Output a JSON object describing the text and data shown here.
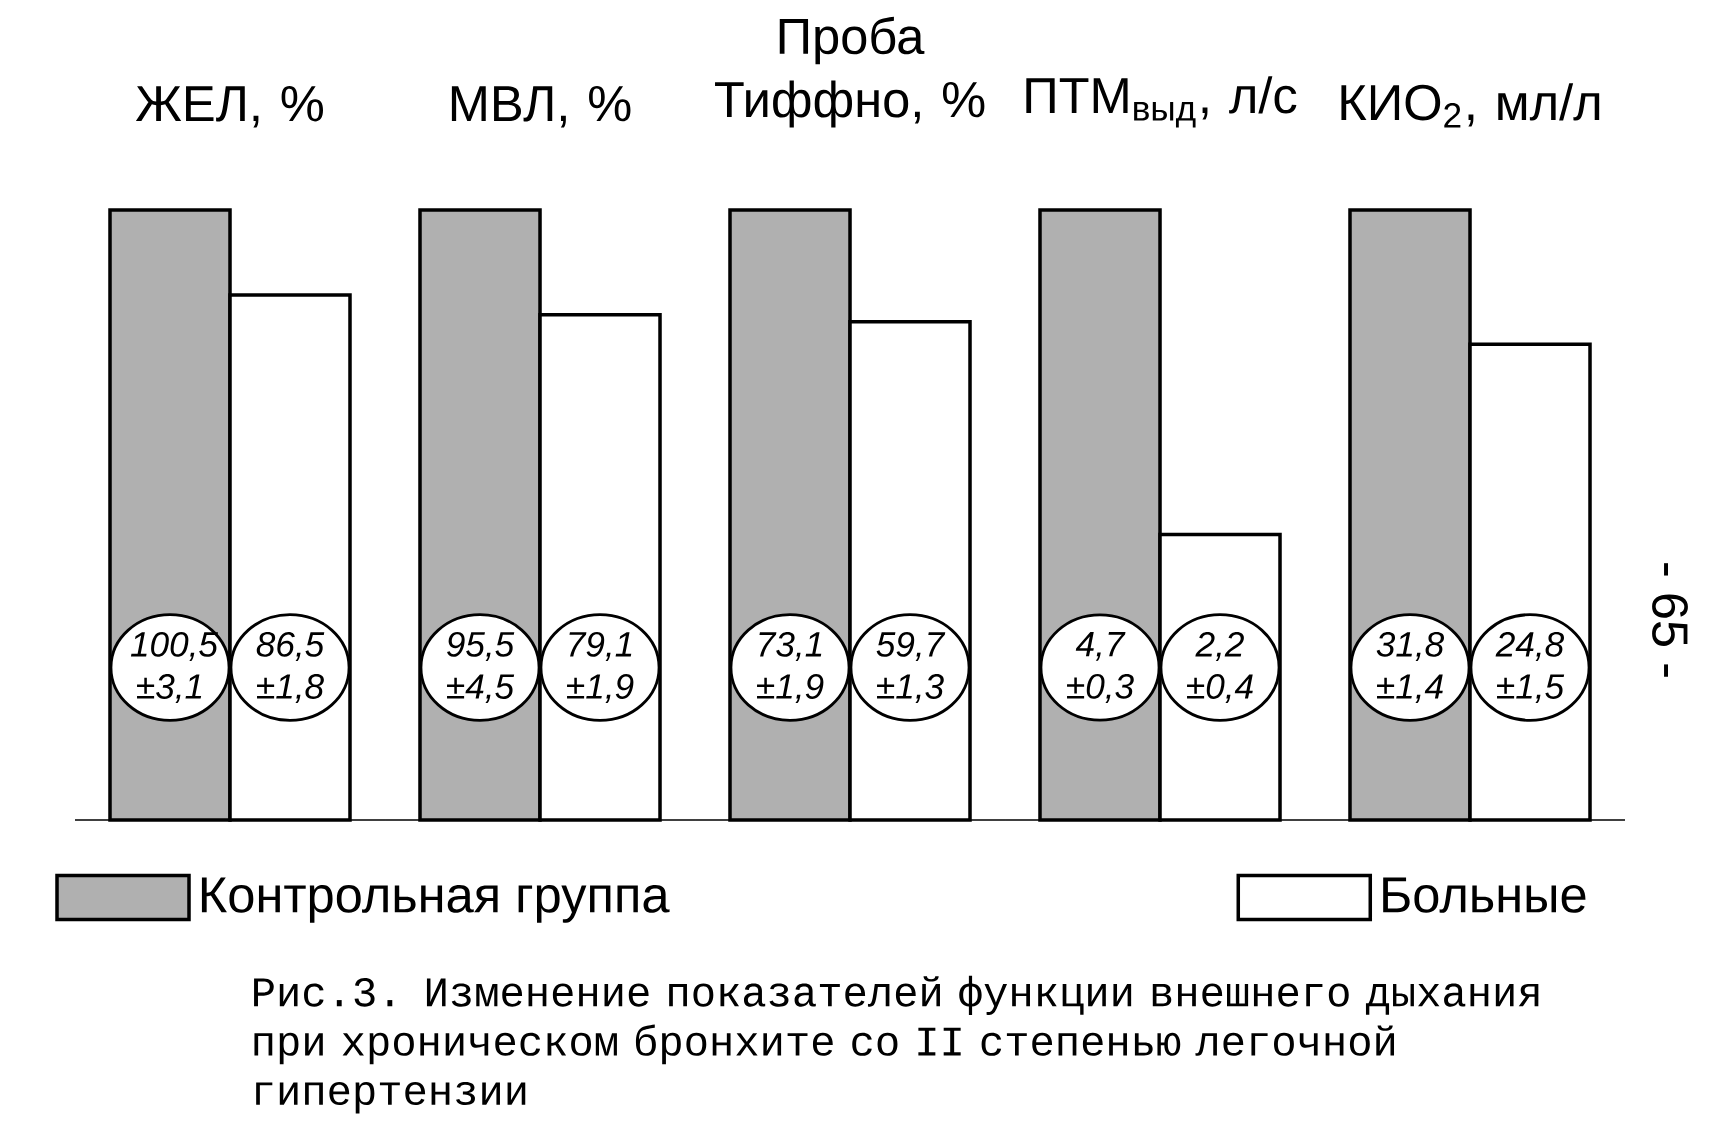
{
  "chart_data": [
    {
      "type": "bar",
      "categories": [
        "ЖЕЛ, %"
      ],
      "tick_labels": false,
      "legend": "bottom",
      "series": [
        {
          "name": "Контрольная группа",
          "color": "#b0b0b0",
          "values": [
            100.5
          ],
          "value_labels": [
            "100,5 ±3,1"
          ]
        },
        {
          "name": "Больные",
          "color": "#ffffff",
          "values": [
            86.5
          ],
          "value_labels": [
            "86,5 ±1,8"
          ]
        }
      ],
      "annotations": [
        "Рис.3. Изменение показателей функции внешнего дыхания при хроническом бронхите со II степенью легочной гипертензии",
        "- 65 -"
      ]
    },
    {
      "type": "bar",
      "categories": [
        "МВЛ, %"
      ],
      "tick_labels": false,
      "series": [
        {
          "color": "#b0b0b0",
          "values": [
            95.5
          ],
          "value_labels": [
            "95,5 ±4,5"
          ]
        },
        {
          "color": "#ffffff",
          "values": [
            79.1
          ],
          "value_labels": [
            "79,1 ±1,9"
          ]
        }
      ]
    },
    {
      "type": "bar",
      "categories": [
        "Проба Тиффно, %"
      ],
      "tick_labels": false,
      "series": [
        {
          "color": "#b0b0b0",
          "values": [
            73.1
          ],
          "value_labels": [
            "73,1 ±1,9"
          ]
        },
        {
          "color": "#ffffff",
          "values": [
            59.7
          ],
          "value_labels": [
            "59,7 ±1,3"
          ]
        }
      ]
    },
    {
      "type": "bar",
      "categories": [
        "ПТМ$_{выд}$, л/с"
      ],
      "tick_labels": false,
      "series": [
        {
          "color": "#b0b0b0",
          "values": [
            4.7
          ],
          "value_labels": [
            "4,7 ±0,3"
          ]
        },
        {
          "color": "#ffffff",
          "values": [
            2.2
          ],
          "value_labels": [
            "2,2 ±0,4"
          ]
        }
      ]
    },
    {
      "type": "bar",
      "categories": [
        "КИО$_{2}$, мл/л"
      ],
      "tick_labels": false,
      "series": [
        {
          "color": "#b0b0b0",
          "values": [
            31.8
          ],
          "value_labels": [
            "31,8 ±1,4"
          ]
        },
        {
          "color": "#ffffff",
          "values": [
            24.8
          ],
          "value_labels": [
            "24,8 ±1,5"
          ]
        }
      ]
    }
  ]
}
